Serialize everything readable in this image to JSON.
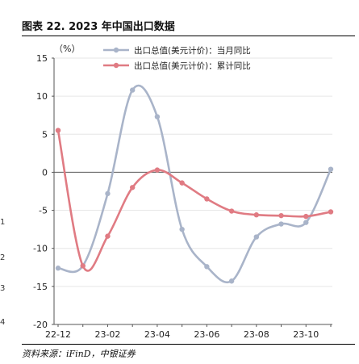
{
  "header": {
    "title": "图表 22. 2023 年中国出口数据"
  },
  "footer": {
    "source": "资料来源：iFinD，中银证券"
  },
  "edge_marks": [
    "1",
    "2",
    "3",
    "4"
  ],
  "chart_data": {
    "type": "line",
    "unit_label": "（%）",
    "ylim": [
      -20,
      15
    ],
    "yticks": [
      15,
      10,
      5,
      0,
      -5,
      -10,
      -15,
      -20
    ],
    "xtick_labels": [
      "22-12",
      "23-02",
      "23-04",
      "23-06",
      "23-08",
      "23-10"
    ],
    "categories": [
      "22-12",
      "23-01",
      "23-02",
      "23-03",
      "23-04",
      "23-05",
      "23-06",
      "23-07",
      "23-08",
      "23-09",
      "23-10",
      "23-11"
    ],
    "grid": true,
    "legend_position": "top",
    "series": [
      {
        "name": "出口总值(美元计价)：当月同比",
        "color": "#a9b4c9",
        "values": [
          -12.6,
          -12.3,
          -2.8,
          10.8,
          7.3,
          -7.5,
          -12.4,
          -14.3,
          -8.5,
          -6.8,
          -6.6,
          0.4
        ]
      },
      {
        "name": "出口总值(美元计价)：累计同比",
        "color": "#e07b83",
        "values": [
          5.5,
          -12.3,
          -8.4,
          -2.0,
          0.3,
          -1.4,
          -3.5,
          -5.1,
          -5.6,
          -5.7,
          -5.8,
          -5.2
        ]
      }
    ]
  }
}
